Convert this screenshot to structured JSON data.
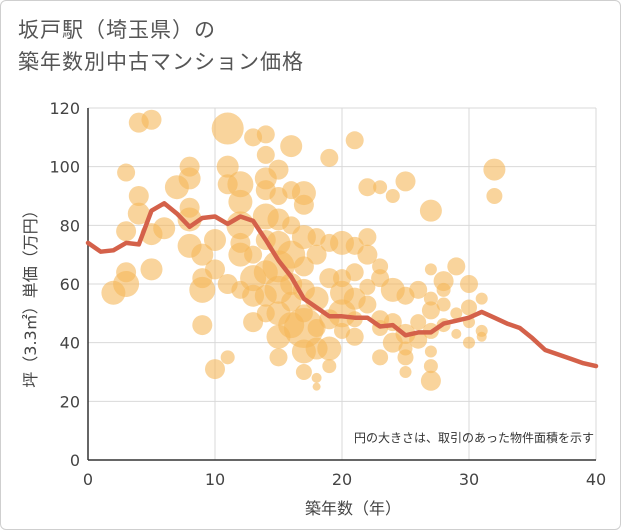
{
  "header": {
    "title_line1": "坂戸駅（埼玉県）の",
    "title_line2": "築年数別中古マンション価格"
  },
  "chart_data": {
    "type": "scatter",
    "title": "坂戸駅（埼玉県）の築年数別中古マンション価格",
    "xlabel": "築年数（年）",
    "ylabel": "坪（3.3㎡）単価（万円）",
    "note": "円の大きさは、取引のあった物件面積を示す",
    "xlim": [
      0,
      40
    ],
    "ylim": [
      0,
      120
    ],
    "xticks": [
      0,
      10,
      20,
      30,
      40
    ],
    "yticks": [
      0,
      20,
      40,
      60,
      80,
      100,
      120
    ],
    "colors": {
      "bubble": "#f5b85a",
      "line": "#d4614a",
      "grid": "#d9d9d9"
    },
    "trend": {
      "x": [
        0,
        1,
        2,
        3,
        4,
        5,
        6,
        7,
        8,
        9,
        10,
        11,
        12,
        13,
        14,
        15,
        16,
        17,
        18,
        19,
        20,
        21,
        22,
        23,
        24,
        25,
        26,
        27,
        28,
        29,
        30,
        31,
        32,
        33,
        34,
        35,
        36,
        37,
        38,
        39,
        40
      ],
      "y": [
        74,
        71,
        71.5,
        74,
        73.5,
        85,
        87.5,
        84,
        79.5,
        82.5,
        83,
        80.5,
        83,
        81.5,
        75,
        68,
        62.5,
        55,
        52,
        49,
        49,
        48.5,
        48.5,
        45.5,
        46,
        42.5,
        43.5,
        43.5,
        46.5,
        47.5,
        48.5,
        50.5,
        48.5,
        46.5,
        45,
        41.5,
        37.5,
        36,
        34.5,
        33,
        32
      ]
    },
    "bubbles": [
      {
        "x": 3,
        "y": 98,
        "r": 9
      },
      {
        "x": 4,
        "y": 115,
        "r": 10
      },
      {
        "x": 5,
        "y": 116,
        "r": 10
      },
      {
        "x": 4,
        "y": 90,
        "r": 10
      },
      {
        "x": 4,
        "y": 84,
        "r": 11
      },
      {
        "x": 3,
        "y": 78,
        "r": 10
      },
      {
        "x": 2,
        "y": 57,
        "r": 12
      },
      {
        "x": 3,
        "y": 60,
        "r": 13
      },
      {
        "x": 3,
        "y": 64,
        "r": 10
      },
      {
        "x": 5,
        "y": 65,
        "r": 11
      },
      {
        "x": 5,
        "y": 77,
        "r": 11
      },
      {
        "x": 6,
        "y": 79,
        "r": 11
      },
      {
        "x": 7,
        "y": 93,
        "r": 12
      },
      {
        "x": 8,
        "y": 100,
        "r": 10
      },
      {
        "x": 8,
        "y": 96,
        "r": 11
      },
      {
        "x": 8,
        "y": 86,
        "r": 10
      },
      {
        "x": 8,
        "y": 82,
        "r": 12
      },
      {
        "x": 8,
        "y": 73,
        "r": 12
      },
      {
        "x": 9,
        "y": 70,
        "r": 11
      },
      {
        "x": 9,
        "y": 62,
        "r": 10
      },
      {
        "x": 9,
        "y": 58,
        "r": 13
      },
      {
        "x": 9,
        "y": 46,
        "r": 10
      },
      {
        "x": 10,
        "y": 31,
        "r": 10
      },
      {
        "x": 11,
        "y": 35,
        "r": 7
      },
      {
        "x": 10,
        "y": 65,
        "r": 10
      },
      {
        "x": 10,
        "y": 75,
        "r": 11
      },
      {
        "x": 11,
        "y": 113,
        "r": 16
      },
      {
        "x": 11,
        "y": 100,
        "r": 11
      },
      {
        "x": 11,
        "y": 94,
        "r": 10
      },
      {
        "x": 12,
        "y": 94,
        "r": 13
      },
      {
        "x": 12,
        "y": 88,
        "r": 12
      },
      {
        "x": 12,
        "y": 80,
        "r": 14
      },
      {
        "x": 12,
        "y": 74,
        "r": 10
      },
      {
        "x": 12,
        "y": 70,
        "r": 12
      },
      {
        "x": 11,
        "y": 60,
        "r": 10
      },
      {
        "x": 12,
        "y": 58,
        "r": 9
      },
      {
        "x": 13,
        "y": 47,
        "r": 10
      },
      {
        "x": 13,
        "y": 56,
        "r": 11
      },
      {
        "x": 13,
        "y": 62,
        "r": 13
      },
      {
        "x": 13,
        "y": 70,
        "r": 9
      },
      {
        "x": 13,
        "y": 110,
        "r": 9
      },
      {
        "x": 14,
        "y": 111,
        "r": 9
      },
      {
        "x": 14,
        "y": 104,
        "r": 9
      },
      {
        "x": 14,
        "y": 96,
        "r": 11
      },
      {
        "x": 14,
        "y": 92,
        "r": 10
      },
      {
        "x": 14,
        "y": 83,
        "r": 13
      },
      {
        "x": 14,
        "y": 75,
        "r": 10
      },
      {
        "x": 14,
        "y": 64,
        "r": 12
      },
      {
        "x": 14,
        "y": 56,
        "r": 11
      },
      {
        "x": 14,
        "y": 50,
        "r": 9
      },
      {
        "x": 15,
        "y": 99,
        "r": 10
      },
      {
        "x": 15,
        "y": 90,
        "r": 9
      },
      {
        "x": 15,
        "y": 82,
        "r": 11
      },
      {
        "x": 15,
        "y": 74,
        "r": 12
      },
      {
        "x": 15,
        "y": 66,
        "r": 16
      },
      {
        "x": 15,
        "y": 58,
        "r": 14
      },
      {
        "x": 15,
        "y": 50,
        "r": 12
      },
      {
        "x": 15,
        "y": 42,
        "r": 12
      },
      {
        "x": 15,
        "y": 35,
        "r": 9
      },
      {
        "x": 16,
        "y": 107,
        "r": 11
      },
      {
        "x": 16,
        "y": 92,
        "r": 9
      },
      {
        "x": 16,
        "y": 80,
        "r": 9
      },
      {
        "x": 16,
        "y": 70,
        "r": 14
      },
      {
        "x": 16,
        "y": 60,
        "r": 11
      },
      {
        "x": 16,
        "y": 54,
        "r": 10
      },
      {
        "x": 16,
        "y": 46,
        "r": 13
      },
      {
        "x": 17,
        "y": 91,
        "r": 12
      },
      {
        "x": 17,
        "y": 87,
        "r": 10
      },
      {
        "x": 17,
        "y": 76,
        "r": 12
      },
      {
        "x": 17,
        "y": 66,
        "r": 10
      },
      {
        "x": 17,
        "y": 58,
        "r": 11
      },
      {
        "x": 17,
        "y": 50,
        "r": 9
      },
      {
        "x": 17,
        "y": 45,
        "r": 20
      },
      {
        "x": 17,
        "y": 37,
        "r": 12
      },
      {
        "x": 17,
        "y": 30,
        "r": 8
      },
      {
        "x": 18,
        "y": 76,
        "r": 9
      },
      {
        "x": 18,
        "y": 70,
        "r": 10
      },
      {
        "x": 18,
        "y": 55,
        "r": 12
      },
      {
        "x": 18,
        "y": 45,
        "r": 9
      },
      {
        "x": 18,
        "y": 38,
        "r": 11
      },
      {
        "x": 18,
        "y": 28,
        "r": 5
      },
      {
        "x": 18,
        "y": 25,
        "r": 4
      },
      {
        "x": 19,
        "y": 103,
        "r": 9
      },
      {
        "x": 19,
        "y": 74,
        "r": 9
      },
      {
        "x": 19,
        "y": 62,
        "r": 10
      },
      {
        "x": 19,
        "y": 48,
        "r": 10
      },
      {
        "x": 19,
        "y": 38,
        "r": 12
      },
      {
        "x": 19,
        "y": 32,
        "r": 7
      },
      {
        "x": 20,
        "y": 74,
        "r": 12
      },
      {
        "x": 20,
        "y": 62,
        "r": 9
      },
      {
        "x": 20,
        "y": 57,
        "r": 12
      },
      {
        "x": 20,
        "y": 50,
        "r": 14
      },
      {
        "x": 20,
        "y": 44,
        "r": 8
      },
      {
        "x": 21,
        "y": 109,
        "r": 9
      },
      {
        "x": 21,
        "y": 73,
        "r": 9
      },
      {
        "x": 21,
        "y": 64,
        "r": 9
      },
      {
        "x": 21,
        "y": 55,
        "r": 11
      },
      {
        "x": 21,
        "y": 48,
        "r": 8
      },
      {
        "x": 21,
        "y": 42,
        "r": 9
      },
      {
        "x": 22,
        "y": 93,
        "r": 9
      },
      {
        "x": 22,
        "y": 76,
        "r": 9
      },
      {
        "x": 22,
        "y": 70,
        "r": 10
      },
      {
        "x": 22,
        "y": 59,
        "r": 8
      },
      {
        "x": 22,
        "y": 53,
        "r": 9
      },
      {
        "x": 23,
        "y": 93,
        "r": 7
      },
      {
        "x": 23,
        "y": 66,
        "r": 8
      },
      {
        "x": 23,
        "y": 62,
        "r": 9
      },
      {
        "x": 23,
        "y": 48,
        "r": 9
      },
      {
        "x": 23,
        "y": 45,
        "r": 8
      },
      {
        "x": 23,
        "y": 35,
        "r": 8
      },
      {
        "x": 24,
        "y": 90,
        "r": 7
      },
      {
        "x": 24,
        "y": 58,
        "r": 12
      },
      {
        "x": 24,
        "y": 47,
        "r": 9
      },
      {
        "x": 24,
        "y": 40,
        "r": 10
      },
      {
        "x": 25,
        "y": 95,
        "r": 10
      },
      {
        "x": 25,
        "y": 56,
        "r": 9
      },
      {
        "x": 25,
        "y": 43,
        "r": 10
      },
      {
        "x": 25,
        "y": 38,
        "r": 7
      },
      {
        "x": 25,
        "y": 35,
        "r": 8
      },
      {
        "x": 25,
        "y": 30,
        "r": 6
      },
      {
        "x": 26,
        "y": 58,
        "r": 9
      },
      {
        "x": 26,
        "y": 47,
        "r": 8
      },
      {
        "x": 26,
        "y": 41,
        "r": 9
      },
      {
        "x": 27,
        "y": 85,
        "r": 11
      },
      {
        "x": 27,
        "y": 65,
        "r": 6
      },
      {
        "x": 27,
        "y": 55,
        "r": 7
      },
      {
        "x": 27,
        "y": 51,
        "r": 9
      },
      {
        "x": 27,
        "y": 44,
        "r": 8
      },
      {
        "x": 27,
        "y": 37,
        "r": 6
      },
      {
        "x": 27,
        "y": 32,
        "r": 7
      },
      {
        "x": 27,
        "y": 27,
        "r": 10
      },
      {
        "x": 28,
        "y": 61,
        "r": 10
      },
      {
        "x": 28,
        "y": 58,
        "r": 7
      },
      {
        "x": 28,
        "y": 53,
        "r": 7
      },
      {
        "x": 28,
        "y": 46,
        "r": 7
      },
      {
        "x": 29,
        "y": 66,
        "r": 9
      },
      {
        "x": 29,
        "y": 50,
        "r": 6
      },
      {
        "x": 29,
        "y": 43,
        "r": 5
      },
      {
        "x": 30,
        "y": 60,
        "r": 9
      },
      {
        "x": 30,
        "y": 52,
        "r": 8
      },
      {
        "x": 30,
        "y": 47,
        "r": 6
      },
      {
        "x": 30,
        "y": 40,
        "r": 6
      },
      {
        "x": 31,
        "y": 55,
        "r": 6
      },
      {
        "x": 31,
        "y": 44,
        "r": 6
      },
      {
        "x": 31,
        "y": 42,
        "r": 5
      },
      {
        "x": 32,
        "y": 99,
        "r": 11
      },
      {
        "x": 32,
        "y": 90,
        "r": 8
      }
    ]
  }
}
